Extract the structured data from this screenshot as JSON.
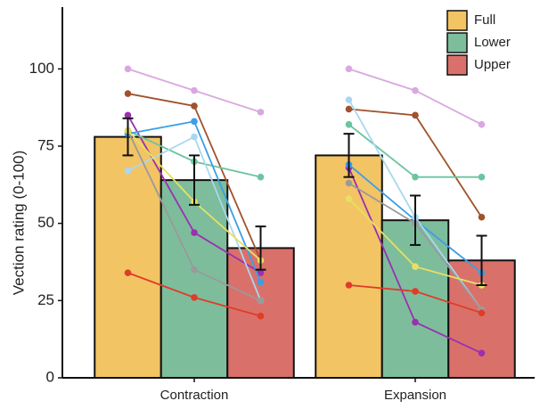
{
  "chart_data": {
    "type": "bar",
    "ylabel": "Vection rating (0-100)",
    "categories": [
      "Contraction",
      "Expansion"
    ],
    "ylim": [
      0,
      120
    ],
    "yticks": [
      0,
      25,
      50,
      75,
      100
    ],
    "legend": "top-right",
    "series": [
      {
        "name": "Full",
        "color": "#f2c464",
        "values": [
          78,
          72
        ],
        "errors": [
          6,
          7
        ]
      },
      {
        "name": "Lower",
        "color": "#7dbd9c",
        "values": [
          64,
          51
        ],
        "errors": [
          8,
          8
        ]
      },
      {
        "name": "Upper",
        "color": "#d9716a",
        "values": [
          42,
          38
        ],
        "errors": [
          7,
          8
        ]
      }
    ],
    "participants": [
      {
        "color": "#d9a8e0",
        "values": [
          [
            100,
            93,
            86
          ],
          [
            100,
            93,
            82
          ]
        ]
      },
      {
        "color": "#a0522d",
        "values": [
          [
            92,
            88,
            38
          ],
          [
            87,
            85,
            52
          ]
        ]
      },
      {
        "color": "#9b30b0",
        "values": [
          [
            85,
            47,
            34
          ],
          [
            68,
            18,
            8
          ]
        ]
      },
      {
        "color": "#6cc4a0",
        "values": [
          [
            80,
            70,
            65
          ],
          [
            82,
            65,
            65
          ]
        ]
      },
      {
        "color": "#3a9ee8",
        "values": [
          [
            79,
            83,
            31
          ],
          [
            69,
            51,
            34
          ]
        ]
      },
      {
        "color": "#a8d8f0",
        "values": [
          [
            67,
            78,
            25
          ],
          [
            90,
            52,
            22
          ]
        ]
      },
      {
        "color": "#9a9a9a",
        "values": [
          [
            80,
            35,
            25
          ],
          [
            63,
            50,
            22
          ]
        ]
      },
      {
        "color": "#e8e060",
        "values": [
          [
            80,
            57,
            38
          ],
          [
            58,
            36,
            30
          ]
        ]
      },
      {
        "color": "#e03c28",
        "values": [
          [
            34,
            26,
            20
          ],
          [
            30,
            28,
            21
          ]
        ]
      }
    ]
  }
}
